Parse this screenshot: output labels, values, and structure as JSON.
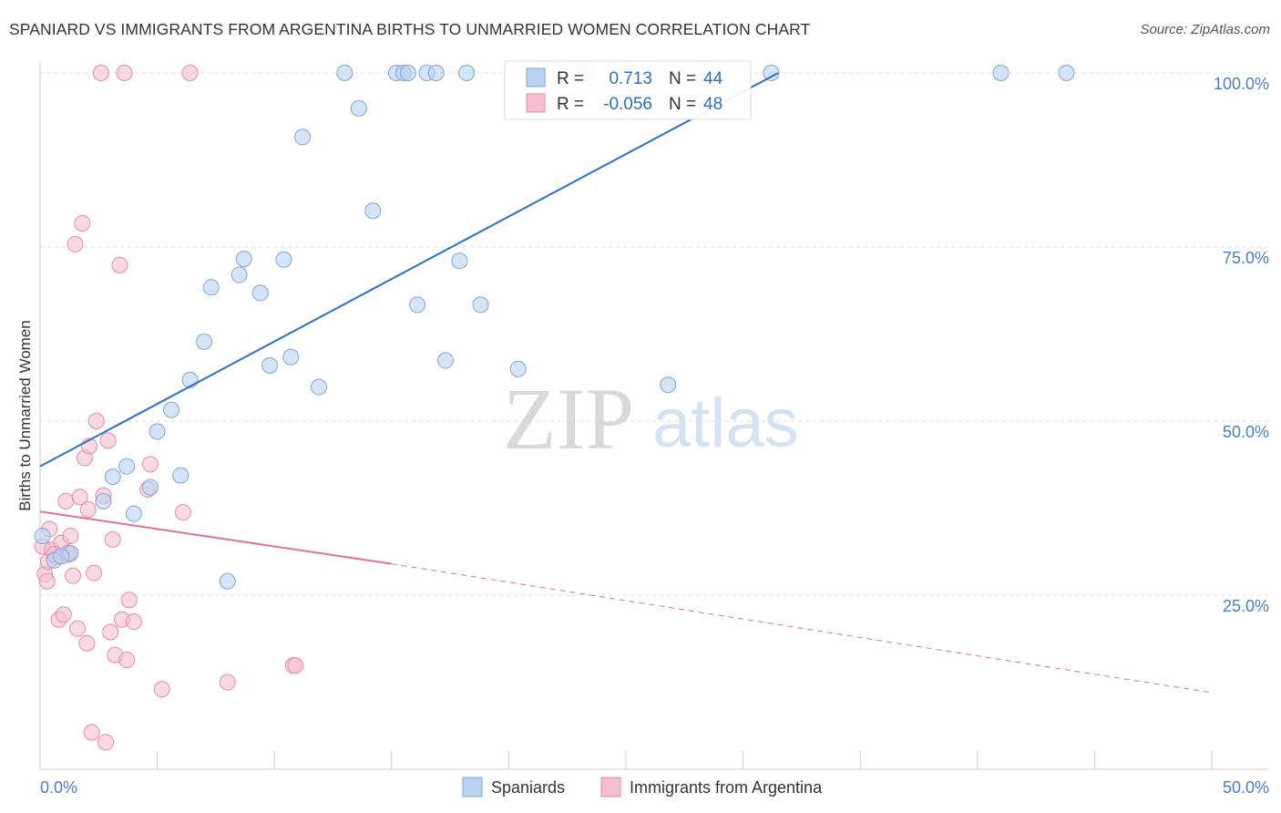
{
  "title": "SPANIARD VS IMMIGRANTS FROM ARGENTINA BIRTHS TO UNMARRIED WOMEN CORRELATION CHART",
  "source": "Source: ZipAtlas.com",
  "watermark": {
    "zip": "ZIP",
    "atlas": "atlas"
  },
  "colors": {
    "blue_fill": "#b9d2f0",
    "blue_stroke": "#7ea6db",
    "blue_line": "#2a6fc9",
    "pink_fill": "#f6bfd0",
    "pink_stroke": "#e98aa9",
    "pink_line": "#e2709a",
    "tick_text": "#4a7cc7",
    "grid": "#dddddd"
  },
  "legend": {
    "rows": [
      {
        "r_label": "R =",
        "r_value": "0.713",
        "n_label": "N =",
        "n_value": "44",
        "series": "blue"
      },
      {
        "r_label": "R =",
        "r_value": "-0.056",
        "n_label": "N =",
        "n_value": "48",
        "series": "pink"
      }
    ]
  },
  "chart_data": {
    "type": "scatter",
    "title": "SPANIARD VS IMMIGRANTS FROM ARGENTINA BIRTHS TO UNMARRIED WOMEN CORRELATION CHART",
    "xlabel": "",
    "ylabel": "Births to Unmarried Women",
    "xlim": [
      0,
      50
    ],
    "ylim": [
      0,
      100
    ],
    "x_ticks": [
      0,
      5,
      10,
      15,
      20,
      25,
      30,
      35,
      40,
      45,
      50
    ],
    "x_tick_labels": [
      "0.0%",
      "50.0%"
    ],
    "y_ticks": [
      25,
      50,
      75,
      100
    ],
    "y_tick_labels": [
      "25.0%",
      "50.0%",
      "75.0%",
      "100.0%"
    ],
    "grid": "horizontal dashed",
    "legend_position": "top-center",
    "series": [
      {
        "name": "Spaniards",
        "color": "blue",
        "r": 0.713,
        "n": 44,
        "trend": {
          "x0": 0,
          "y0": 43.5,
          "x1": 31.5,
          "y1": 100,
          "dashed_to": null
        },
        "points": [
          [
            0.1,
            33.5
          ],
          [
            0.6,
            30.0
          ],
          [
            1.3,
            31.0
          ],
          [
            0.9,
            30.6
          ],
          [
            2.7,
            38.5
          ],
          [
            3.1,
            42.0
          ],
          [
            3.7,
            43.5
          ],
          [
            4.0,
            36.7
          ],
          [
            4.7,
            40.5
          ],
          [
            5.0,
            48.5
          ],
          [
            5.6,
            51.6
          ],
          [
            6.0,
            42.2
          ],
          [
            6.4,
            55.9
          ],
          [
            7.0,
            61.4
          ],
          [
            7.3,
            69.2
          ],
          [
            8.0,
            27.0
          ],
          [
            8.5,
            71.0
          ],
          [
            8.7,
            73.3
          ],
          [
            9.4,
            68.4
          ],
          [
            9.8,
            58.0
          ],
          [
            10.4,
            73.2
          ],
          [
            10.7,
            59.2
          ],
          [
            11.2,
            90.8
          ],
          [
            11.9,
            54.9
          ],
          [
            13.0,
            100.0
          ],
          [
            13.6,
            94.9
          ],
          [
            14.2,
            80.2
          ],
          [
            15.2,
            100.0
          ],
          [
            15.5,
            100.0
          ],
          [
            15.7,
            100.0
          ],
          [
            16.1,
            66.7
          ],
          [
            16.5,
            100.0
          ],
          [
            16.9,
            100.0
          ],
          [
            17.3,
            58.7
          ],
          [
            17.9,
            73.0
          ],
          [
            18.2,
            100.0
          ],
          [
            18.8,
            66.7
          ],
          [
            20.4,
            57.5
          ],
          [
            23.0,
            100.0
          ],
          [
            26.8,
            55.2
          ],
          [
            31.2,
            100.0
          ],
          [
            41.0,
            100.0
          ],
          [
            43.8,
            100.0
          ],
          [
            23.3,
            100.0
          ]
        ]
      },
      {
        "name": "Immigrants from Argentina",
        "color": "pink",
        "r": -0.056,
        "n": 48,
        "trend": {
          "x0": 0,
          "y0": 37.0,
          "x1": 15,
          "y1": 29.5,
          "dashed_to": {
            "x": 50,
            "y": 11.0
          }
        },
        "points": [
          [
            0.1,
            32.0
          ],
          [
            0.2,
            28.0
          ],
          [
            0.3,
            27.0
          ],
          [
            0.4,
            34.5
          ],
          [
            0.5,
            31.5
          ],
          [
            0.7,
            30.5
          ],
          [
            0.8,
            21.5
          ],
          [
            0.9,
            32.5
          ],
          [
            1.0,
            22.2
          ],
          [
            1.1,
            38.5
          ],
          [
            1.2,
            30.8
          ],
          [
            1.4,
            27.8
          ],
          [
            1.5,
            75.4
          ],
          [
            1.6,
            20.2
          ],
          [
            1.7,
            39.1
          ],
          [
            1.8,
            78.4
          ],
          [
            1.9,
            44.7
          ],
          [
            2.0,
            18.1
          ],
          [
            2.05,
            37.3
          ],
          [
            2.1,
            46.4
          ],
          [
            2.2,
            5.3
          ],
          [
            2.3,
            28.2
          ],
          [
            2.4,
            50.0
          ],
          [
            2.6,
            100.0
          ],
          [
            2.7,
            39.3
          ],
          [
            2.8,
            3.9
          ],
          [
            2.9,
            47.2
          ],
          [
            3.0,
            19.7
          ],
          [
            3.1,
            33.0
          ],
          [
            3.2,
            16.4
          ],
          [
            3.4,
            72.4
          ],
          [
            3.5,
            21.5
          ],
          [
            3.6,
            100.0
          ],
          [
            3.7,
            15.7
          ],
          [
            3.8,
            24.3
          ],
          [
            4.0,
            21.2
          ],
          [
            4.6,
            40.2
          ],
          [
            4.7,
            43.8
          ],
          [
            5.2,
            11.5
          ],
          [
            6.1,
            36.9
          ],
          [
            6.4,
            100.0
          ],
          [
            8.0,
            12.5
          ],
          [
            10.8,
            14.9
          ],
          [
            10.9,
            14.9
          ],
          [
            0.35,
            29.8
          ],
          [
            1.3,
            33.5
          ],
          [
            0.6,
            30.9
          ],
          [
            1.2,
            31.1
          ]
        ]
      }
    ]
  },
  "bottom_legend": {
    "items": [
      {
        "label": "Spaniards",
        "color": "blue"
      },
      {
        "label": "Immigrants from Argentina",
        "color": "pink"
      }
    ]
  }
}
